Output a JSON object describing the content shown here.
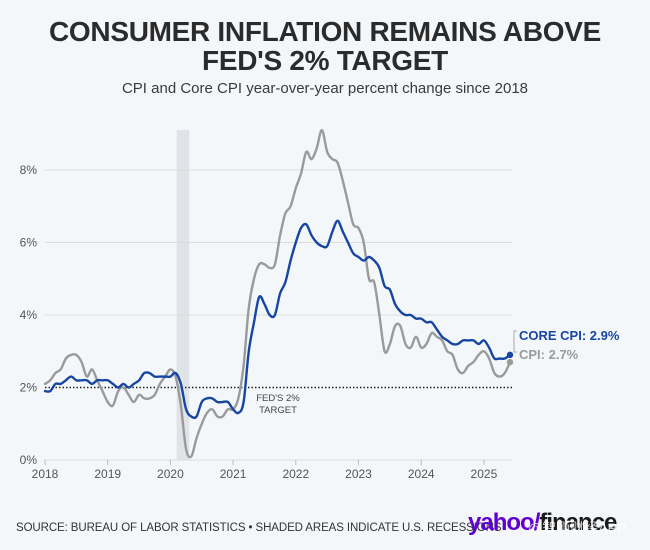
{
  "title": "CONSUMER INFLATION REMAINS ABOVE FED'S 2% TARGET",
  "title_line1": "CONSUMER INFLATION REMAINS ABOVE",
  "title_line2": "FED'S 2% TARGET",
  "subtitle": "CPI and Core CPI year-over-year percent change since 2018",
  "source": "SOURCE: BUREAU OF LABOR STATISTICS • SHADED AREAS INDICATE U.S. RECESSIONS",
  "logo": {
    "part1": "yahoo",
    "slash": "/",
    "part2": "finance"
  },
  "watermark": "@智通财经APP",
  "colors": {
    "core_cpi": "#1746a2",
    "cpi": "#9a9a9a",
    "recession": "#e0e3e7",
    "grid": "#dcdcdc",
    "background": "#f4f7fa"
  },
  "chart_data": {
    "type": "line",
    "title": "CONSUMER INFLATION REMAINS ABOVE FED'S 2% TARGET",
    "subtitle": "CPI and Core CPI year-over-year percent change since 2018",
    "xlabel": "",
    "ylabel": "",
    "x_start": "2018-01",
    "x_frequency": "monthly",
    "xlim": [
      2018.0,
      2025.5
    ],
    "ylim": [
      0,
      9
    ],
    "x_ticks": [
      "2018",
      "2019",
      "2020",
      "2021",
      "2022",
      "2023",
      "2024",
      "2025"
    ],
    "x_tick_values": [
      2018,
      2019,
      2020,
      2021,
      2022,
      2023,
      2024,
      2025
    ],
    "y_ticks": [
      "0%",
      "2%",
      "4%",
      "6%",
      "8%"
    ],
    "y_tick_values": [
      0,
      2,
      4,
      6,
      8
    ],
    "grid": true,
    "reference_line": {
      "value": 2,
      "label_line1": "FED'S 2%",
      "label_line2": "TARGET",
      "style": "dotted"
    },
    "recessions": [
      {
        "start": 2020.1,
        "end": 2020.3
      }
    ],
    "series": [
      {
        "name": "Core CPI",
        "end_label": "CORE CPI: 2.9%",
        "values": [
          1.9,
          1.9,
          2.1,
          2.1,
          2.2,
          2.3,
          2.2,
          2.2,
          2.2,
          2.1,
          2.2,
          2.2,
          2.2,
          2.1,
          2.0,
          2.1,
          2.0,
          2.1,
          2.2,
          2.4,
          2.4,
          2.3,
          2.3,
          2.3,
          2.3,
          2.4,
          2.1,
          1.4,
          1.2,
          1.2,
          1.6,
          1.7,
          1.7,
          1.6,
          1.6,
          1.6,
          1.4,
          1.3,
          1.6,
          3.0,
          3.8,
          4.5,
          4.3,
          4.0,
          4.0,
          4.6,
          4.9,
          5.5,
          6.0,
          6.4,
          6.5,
          6.2,
          6.0,
          5.9,
          5.9,
          6.3,
          6.6,
          6.3,
          6.0,
          5.7,
          5.6,
          5.5,
          5.6,
          5.5,
          5.3,
          4.8,
          4.7,
          4.3,
          4.1,
          4.0,
          4.0,
          3.9,
          3.9,
          3.8,
          3.8,
          3.6,
          3.4,
          3.3,
          3.2,
          3.2,
          3.3,
          3.3,
          3.3,
          3.2,
          3.3,
          3.1,
          2.8,
          2.8,
          2.8,
          2.9
        ]
      },
      {
        "name": "CPI",
        "end_label": "CPI: 2.7%",
        "values": [
          2.1,
          2.2,
          2.4,
          2.5,
          2.8,
          2.9,
          2.9,
          2.7,
          2.3,
          2.5,
          2.2,
          1.9,
          1.6,
          1.5,
          1.9,
          2.0,
          1.8,
          1.6,
          1.8,
          1.7,
          1.7,
          1.8,
          2.1,
          2.3,
          2.5,
          2.3,
          1.5,
          0.3,
          0.1,
          0.6,
          1.0,
          1.3,
          1.4,
          1.2,
          1.2,
          1.4,
          1.4,
          1.7,
          2.6,
          4.2,
          5.0,
          5.4,
          5.4,
          5.3,
          5.4,
          6.2,
          6.8,
          7.0,
          7.5,
          7.9,
          8.5,
          8.3,
          8.6,
          9.1,
          8.5,
          8.3,
          8.2,
          7.7,
          7.1,
          6.5,
          6.4,
          6.0,
          5.0,
          4.9,
          4.0,
          3.0,
          3.2,
          3.7,
          3.7,
          3.2,
          3.1,
          3.4,
          3.1,
          3.2,
          3.5,
          3.4,
          3.3,
          3.0,
          2.9,
          2.5,
          2.4,
          2.6,
          2.7,
          2.9,
          3.0,
          2.8,
          2.4,
          2.3,
          2.4,
          2.7
        ]
      }
    ]
  }
}
